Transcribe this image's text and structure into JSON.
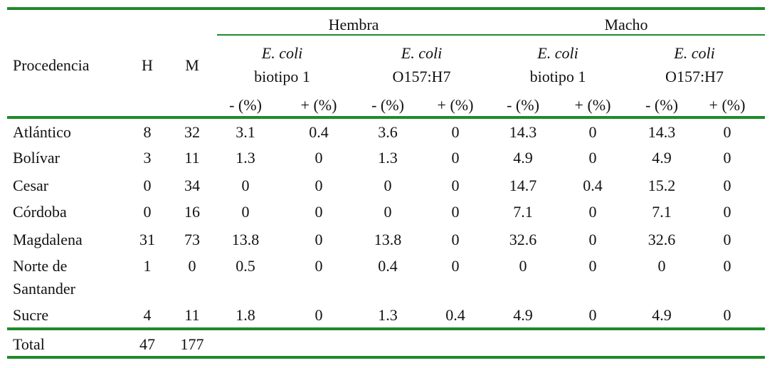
{
  "header": {
    "group_labels": [
      "Hembra",
      "Macho"
    ],
    "col_labels": [
      "Procedencia",
      "H",
      "M"
    ],
    "organisms": [
      {
        "name": "E. coli",
        "strain": "biotipo 1"
      },
      {
        "name": "E. coli",
        "strain": "O157:H7"
      },
      {
        "name": "E. coli",
        "strain": "biotipo 1"
      },
      {
        "name": "E. coli",
        "strain": "O157:H7"
      }
    ],
    "signs": [
      "- (%)",
      "+ (%)",
      "- (%)",
      "+ (%)",
      "- (%)",
      "+ (%)",
      "- (%)",
      "+ (%)"
    ]
  },
  "table": {
    "rows": [
      {
        "procedencia": "Atlántico",
        "h": 8,
        "m": 32,
        "values": [
          3.1,
          0.4,
          3.6,
          0,
          14.3,
          0,
          14.3,
          0
        ]
      },
      {
        "procedencia": "Bolívar",
        "h": 3,
        "m": 11,
        "values": [
          1.3,
          0,
          1.3,
          0,
          4.9,
          0,
          4.9,
          0
        ]
      },
      {
        "procedencia": "Cesar",
        "h": 0,
        "m": 34,
        "values": [
          0,
          0,
          0,
          0,
          14.7,
          0.4,
          15.2,
          0
        ]
      },
      {
        "procedencia": "Córdoba",
        "h": 0,
        "m": 16,
        "values": [
          0,
          0,
          0,
          0,
          7.1,
          0,
          7.1,
          0
        ]
      },
      {
        "procedencia": "Magdalena",
        "h": 31,
        "m": 73,
        "values": [
          13.8,
          0,
          13.8,
          0,
          32.6,
          0,
          32.6,
          0
        ]
      },
      {
        "procedencia": "Norte de\nSantander",
        "h": 1,
        "m": 0,
        "values": [
          0.5,
          0,
          0.4,
          0,
          0,
          0,
          0,
          0
        ]
      },
      {
        "procedencia": "Sucre",
        "h": 4,
        "m": 11,
        "values": [
          1.8,
          0,
          1.3,
          0.4,
          4.9,
          0,
          4.9,
          0
        ]
      }
    ],
    "total": {
      "label": "Total",
      "h": 47,
      "m": 177
    }
  }
}
